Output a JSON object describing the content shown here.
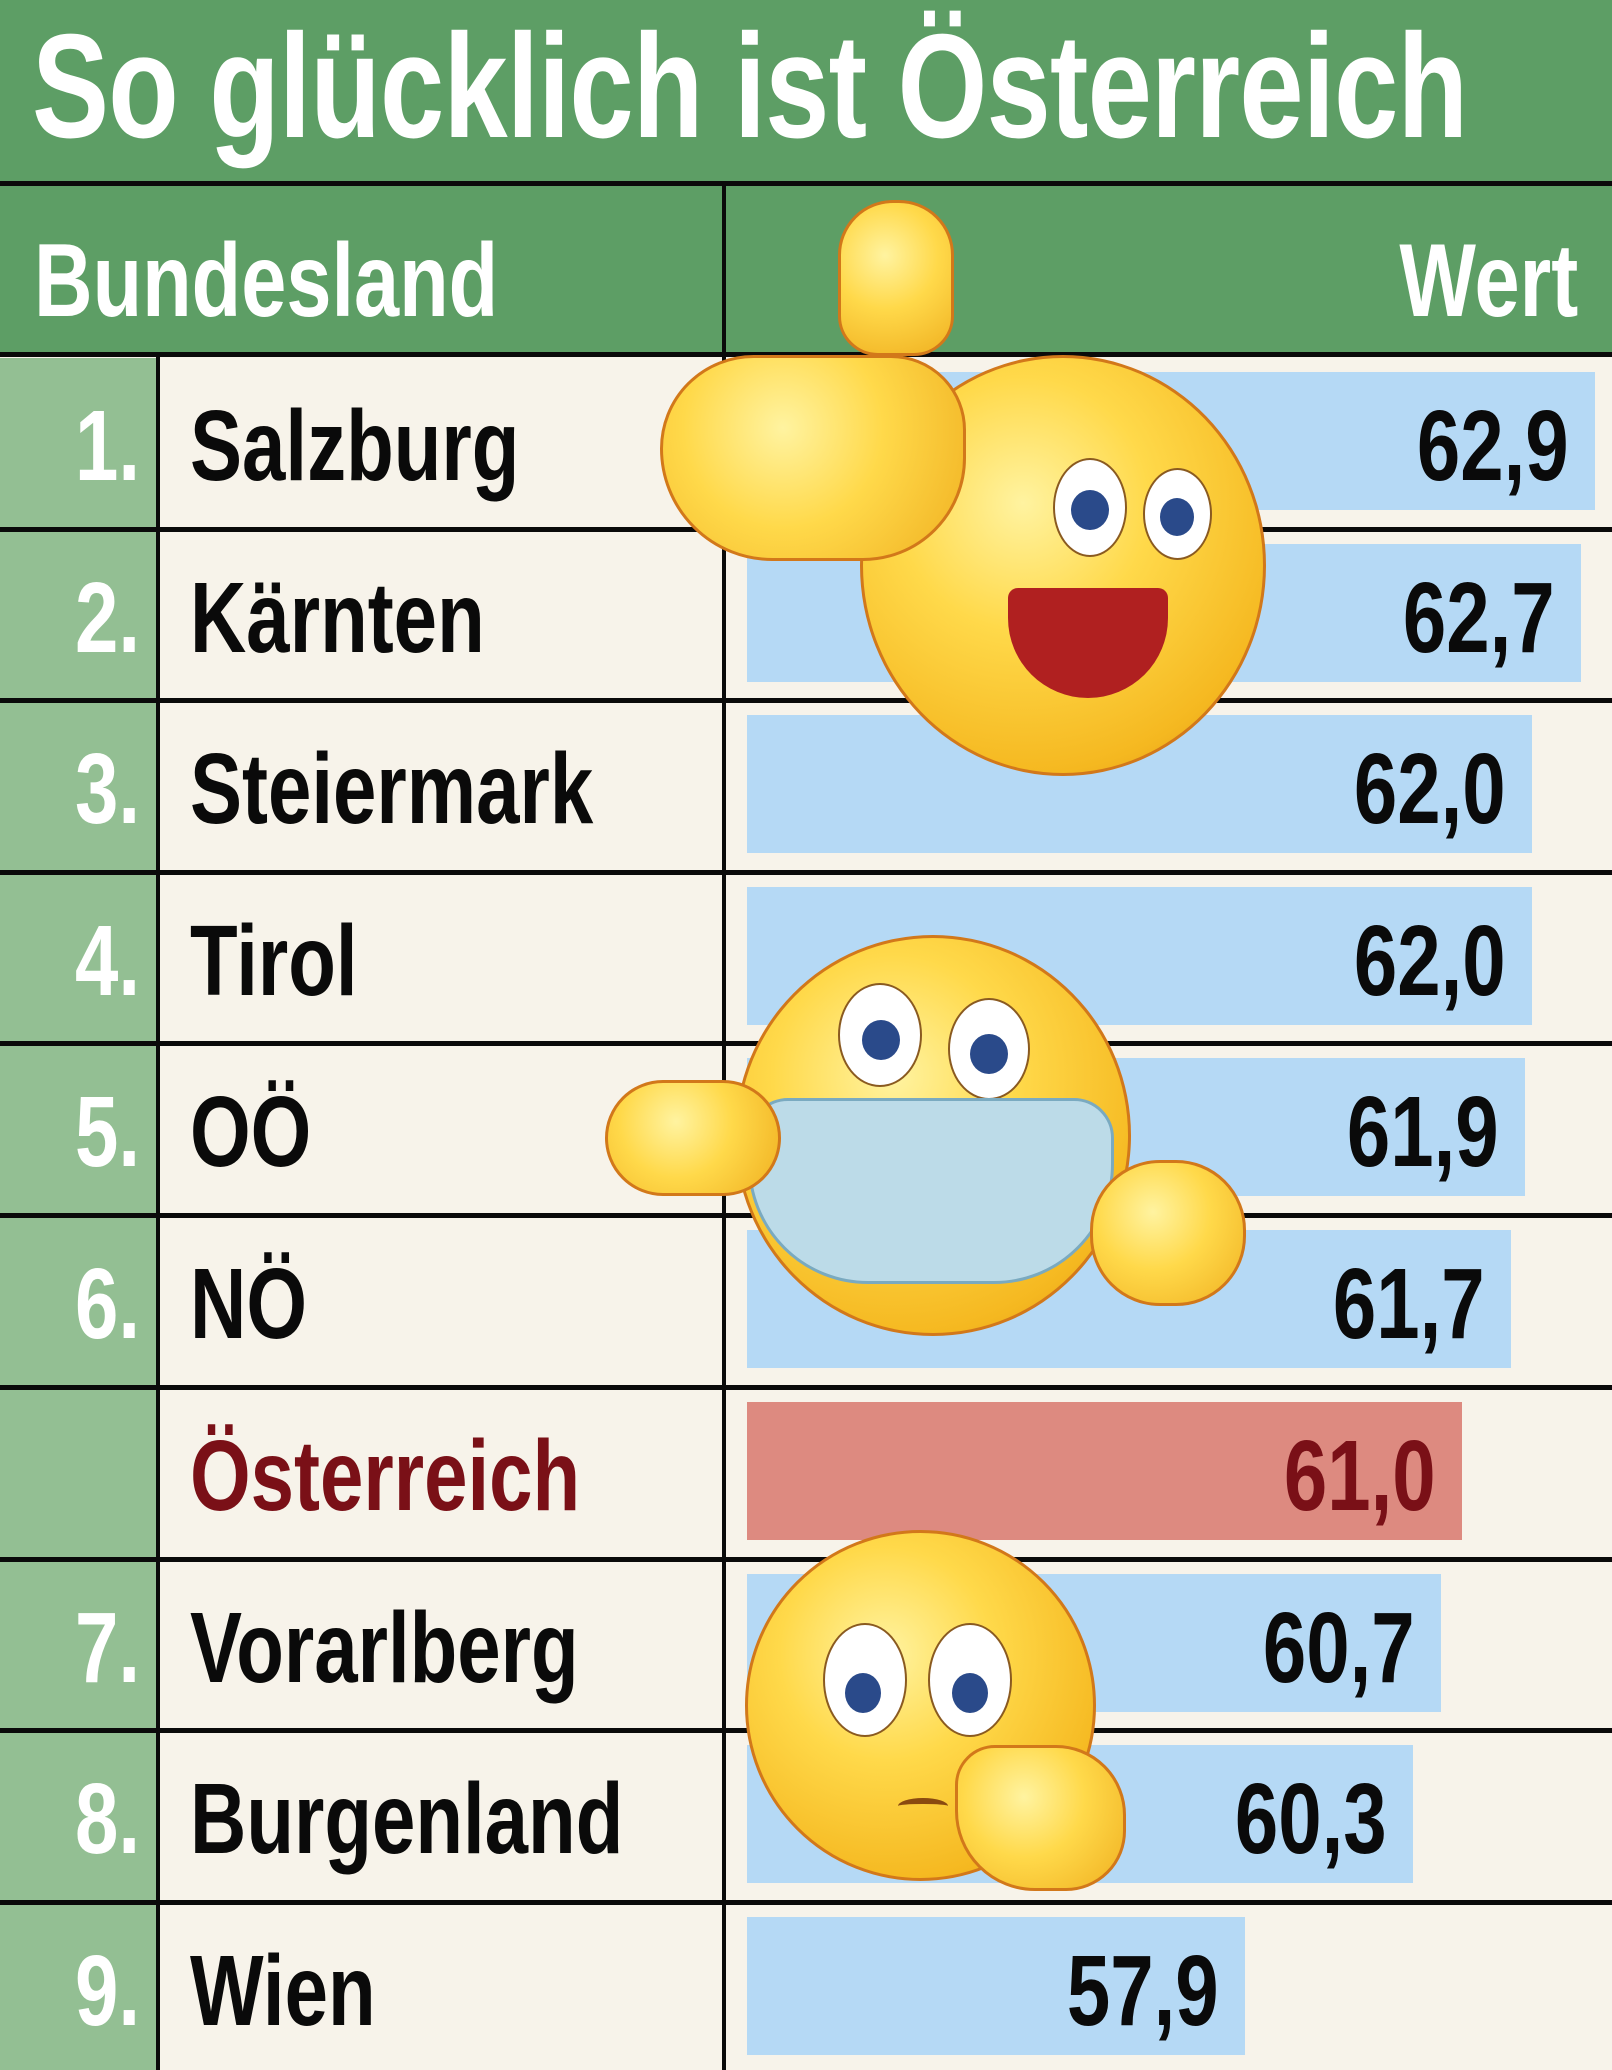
{
  "title": "So glücklich ist Österreich",
  "header": {
    "left": "Bundesland",
    "right": "Wert"
  },
  "colors": {
    "green_header": "#5d9e65",
    "rank_column": "#93bf93",
    "background": "#f7f3ea",
    "bar_blue": "#b5d9f5",
    "bar_highlight": "#dd8a80",
    "highlight_text": "#7a1017"
  },
  "rows": [
    {
      "rank": "1.",
      "name": "Salzburg",
      "value": "62,9"
    },
    {
      "rank": "2.",
      "name": "Kärnten",
      "value": "62,7"
    },
    {
      "rank": "3.",
      "name": "Steiermark",
      "value": "62,0"
    },
    {
      "rank": "4.",
      "name": "Tirol",
      "value": "62,0"
    },
    {
      "rank": "5.",
      "name": "OÖ",
      "value": "61,9"
    },
    {
      "rank": "6.",
      "name": "NÖ",
      "value": "61,7"
    },
    {
      "rank": "",
      "name": "Österreich",
      "value": "61,0"
    },
    {
      "rank": "7.",
      "name": "Vorarlberg",
      "value": "60,7"
    },
    {
      "rank": "8.",
      "name": "Burgenland",
      "value": "60,3"
    },
    {
      "rank": "9.",
      "name": "Wien",
      "value": "57,9"
    }
  ],
  "decorations": [
    "thumbs-up-emoji",
    "face-mask-emoji",
    "worried-shrug-emoji"
  ],
  "chart_data": {
    "type": "bar",
    "orientation": "horizontal",
    "title": "So glücklich ist Österreich",
    "xlabel": "Wert",
    "ylabel": "Bundesland",
    "categories": [
      "Salzburg",
      "Kärnten",
      "Steiermark",
      "Tirol",
      "OÖ",
      "NÖ",
      "Österreich",
      "Vorarlberg",
      "Burgenland",
      "Wien"
    ],
    "ranks": [
      "1.",
      "2.",
      "3.",
      "4.",
      "5.",
      "6.",
      "",
      "7.",
      "8.",
      "9."
    ],
    "values": [
      62.9,
      62.7,
      62.0,
      62.0,
      61.9,
      61.7,
      61.0,
      60.7,
      60.3,
      57.9
    ],
    "highlight": "Österreich",
    "grid": false,
    "legend": "none"
  }
}
